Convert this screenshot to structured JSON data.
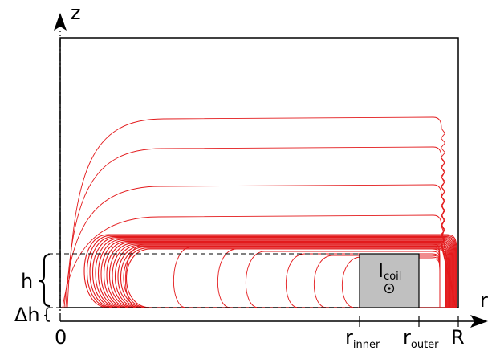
{
  "axes": {
    "vertical_label": "z",
    "horizontal_label": "r",
    "origin_label": "0",
    "outer_boundary_label": "R"
  },
  "coil": {
    "current_symbol": "I",
    "current_subscript": "coil",
    "direction_glyph": "out-of-page-dot-icon",
    "fill_color": "#c0c0c0"
  },
  "dimensions": {
    "height_label": "h",
    "gap_label": "Δh",
    "r_inner_base": "r",
    "r_inner_sub": "inner",
    "r_outer_base": "r",
    "r_outer_sub": "outer"
  },
  "colors": {
    "field_lines": "#e31a1c",
    "frame": "#000000"
  }
}
